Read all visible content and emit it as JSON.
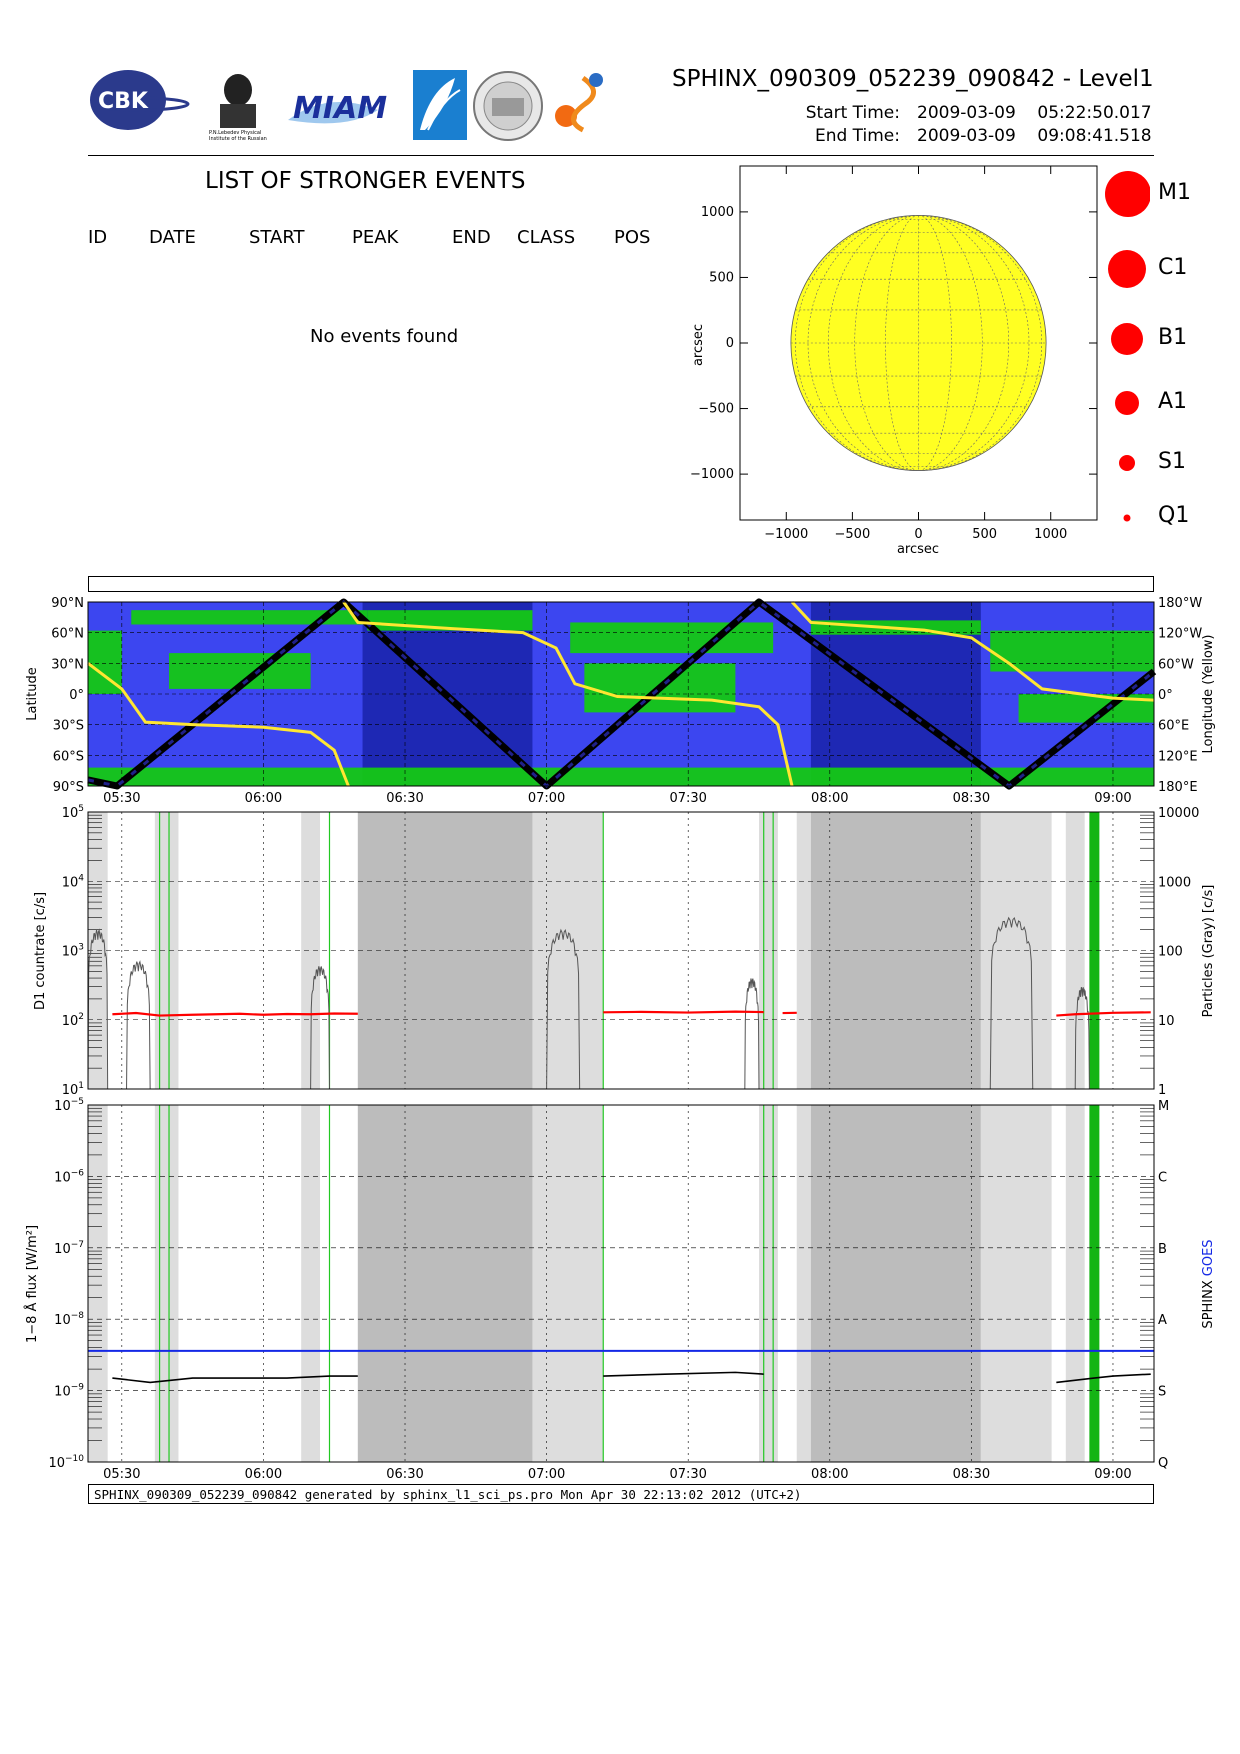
{
  "header": {
    "title": "SPHINX_090309_052239_090842 - Level1",
    "start_label": "Start Time:",
    "start_value": "2009-03-09    05:22:50.017",
    "end_label": "End Time:",
    "end_value": "2009-03-09    09:08:41.518"
  },
  "logos": [
    "CBK",
    "P.N.Lebedev Physical Institute of the Russian Academy of Science",
    "MIAM",
    "rocket-logo",
    "university-seal",
    "SPHINX"
  ],
  "events": {
    "title": "LIST OF STRONGER EVENTS",
    "columns": [
      "ID",
      "DATE",
      "START",
      "PEAK",
      "END",
      "CLASS",
      "POS"
    ],
    "empty_message": "No events found"
  },
  "sun_map": {
    "xlabel": "arcsec",
    "ylabel": "arcsec",
    "xticks": [
      "−1000",
      "−500",
      "0",
      "500",
      "1000"
    ],
    "yticks": [
      "1000",
      "500",
      "0",
      "−500",
      "−1000"
    ],
    "disk_color": "#ffff22"
  },
  "class_legend": [
    "M1",
    "C1",
    "B1",
    "A1",
    "S1",
    "Q1"
  ],
  "orbit_panel": {
    "ylabel_left": "Latitude",
    "ylabel_right": "Longitude (Yellow)",
    "left_ticks": [
      "90°N",
      "60°N",
      "30°N",
      "0°",
      "30°S",
      "60°S",
      "90°S"
    ],
    "right_ticks": [
      "180°W",
      "120°W",
      "60°W",
      "0°",
      "60°E",
      "120°E",
      "180°E"
    ],
    "colors": {
      "background": "#3c46f0",
      "land": "#14c814",
      "eclipse": "#1e28b4",
      "longitude": "#ffe632"
    }
  },
  "time_axis": [
    "05:30",
    "06:00",
    "06:30",
    "07:00",
    "07:30",
    "08:00",
    "08:30",
    "09:00"
  ],
  "countrate_panel": {
    "ylabel_left": "D1 countrate [c/s]",
    "ylabel_right": "Particles (Gray) [c/s]",
    "left_ticks": [
      "10^5",
      "10^4",
      "10^3",
      "10^2",
      "10^1"
    ],
    "right_ticks": [
      "10000",
      "1000",
      "100",
      "10",
      "1"
    ]
  },
  "flux_panel": {
    "ylabel_left": "1−8 Å flux [W/m²]",
    "ylabel_right_1": "SPHINX",
    "ylabel_right_2": "GOES",
    "left_ticks": [
      "10^-5",
      "10^-6",
      "10^-7",
      "10^-8",
      "10^-9",
      "10^-10"
    ],
    "right_ticks": [
      "M",
      "C",
      "B",
      "A",
      "S",
      "Q"
    ],
    "goes_color": "#1428e6"
  },
  "footer": "SPHINX_090309_052239_090842 generated by sphinx_l1_sci_ps.pro Mon Apr 30 22:13:02 2012 (UTC+2)",
  "chart_data": [
    {
      "type": "scatter",
      "title": "",
      "xlabel": "arcsec",
      "ylabel": "arcsec",
      "xlim": [
        -1350,
        1350
      ],
      "ylim": [
        -1350,
        1350
      ],
      "solar_radius": 965,
      "events": []
    },
    {
      "type": "line",
      "title": "",
      "x_unit": "UT",
      "xlim": [
        "05:22:50",
        "09:08:41"
      ],
      "ylabel": "Latitude",
      "series": []
    },
    {
      "type": "line",
      "ylabel": "D1 countrate [c/s]",
      "y_scale": "log",
      "ylim": [
        10,
        100000
      ],
      "right_ylim": [
        1,
        10000
      ],
      "series": [
        {
          "x": [
            "05:28",
            "05:33",
            "05:38",
            "05:45",
            "05:50",
            "05:55",
            "06:00",
            "06:05",
            "06:10",
            "06:15",
            "06:20"
          ],
          "values": [
            120,
            125,
            115,
            118,
            120,
            122,
            118,
            121,
            120,
            123,
            122
          ]
        },
        {
          "x": [
            "07:12",
            "07:20",
            "07:30",
            "07:40",
            "07:46"
          ],
          "values": [
            128,
            130,
            127,
            131,
            129
          ]
        },
        {
          "x": [
            "07:50",
            "07:53"
          ],
          "values": [
            125,
            126
          ]
        },
        {
          "x": [
            "08:48",
            "08:52",
            "09:00",
            "09:08"
          ],
          "values": [
            115,
            120,
            126,
            128
          ]
        }
      ]
    },
    {
      "type": "line",
      "ylabel": "1−8 Å flux [W/m²]",
      "y_scale": "log",
      "ylim": [
        1e-10,
        1e-05
      ],
      "series": [
        {
          "name": "SPHINX",
          "x": [
            "05:28",
            "05:36",
            "05:45",
            "05:55",
            "06:05",
            "06:14",
            "06:20"
          ],
          "values": [
            1.5e-09,
            1.3e-09,
            1.5e-09,
            1.5e-09,
            1.5e-09,
            1.6e-09,
            1.6e-09
          ]
        },
        {
          "name": "SPHINX",
          "x": [
            "07:12",
            "07:25",
            "07:40",
            "07:46"
          ],
          "values": [
            1.6e-09,
            1.7e-09,
            1.8e-09,
            1.7e-09
          ]
        },
        {
          "name": "SPHINX",
          "x": [
            "08:48",
            "08:56",
            "09:00",
            "09:08"
          ],
          "values": [
            1.3e-09,
            1.5e-09,
            1.6e-09,
            1.7e-09
          ]
        },
        {
          "name": "GOES",
          "x": [
            "05:22:50",
            "09:08:41"
          ],
          "values": [
            3.6e-09,
            3.6e-09
          ]
        }
      ]
    }
  ]
}
